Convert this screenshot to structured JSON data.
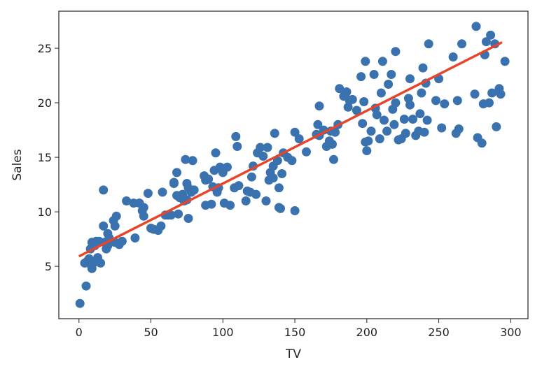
{
  "chart_data": {
    "type": "scatter",
    "xlabel": "TV",
    "ylabel": "Sales",
    "xlim": [
      -14,
      312
    ],
    "ylim": [
      0.2,
      28.4
    ],
    "xticks": [
      0,
      50,
      100,
      150,
      200,
      250,
      300
    ],
    "yticks": [
      5,
      10,
      15,
      20,
      25
    ],
    "grid": false,
    "colors": {
      "points": "#3a72b0",
      "fit_line": "#e8442a",
      "axis": "#222222"
    },
    "series": [
      {
        "type": "scatter",
        "points": [
          [
            0.7,
            1.6
          ],
          [
            5,
            3.2
          ],
          [
            4,
            5.3
          ],
          [
            6,
            5.5
          ],
          [
            7,
            5.7
          ],
          [
            8,
            5.2
          ],
          [
            9,
            4.8
          ],
          [
            10,
            5.3
          ],
          [
            8,
            6.6
          ],
          [
            11,
            6.9
          ],
          [
            9,
            7.2
          ],
          [
            12,
            7.3
          ],
          [
            14,
            7.3
          ],
          [
            13,
            5.8
          ],
          [
            15,
            5.3
          ],
          [
            17,
            12.0
          ],
          [
            17,
            8.7
          ],
          [
            18,
            7.2
          ],
          [
            19,
            6.6
          ],
          [
            20,
            6.9
          ],
          [
            20,
            8.0
          ],
          [
            21,
            7.6
          ],
          [
            24,
            9.2
          ],
          [
            25,
            8.7
          ],
          [
            26,
            9.6
          ],
          [
            25,
            7.2
          ],
          [
            28,
            7.0
          ],
          [
            30,
            7.3
          ],
          [
            33,
            11.0
          ],
          [
            38,
            10.8
          ],
          [
            39,
            7.6
          ],
          [
            42,
            10.8
          ],
          [
            44,
            10.1
          ],
          [
            45,
            9.6
          ],
          [
            45,
            10.4
          ],
          [
            48,
            11.7
          ],
          [
            50,
            8.5
          ],
          [
            52,
            8.4
          ],
          [
            55,
            8.3
          ],
          [
            57,
            8.7
          ],
          [
            58,
            11.8
          ],
          [
            60,
            9.7
          ],
          [
            62,
            9.7
          ],
          [
            64,
            9.7
          ],
          [
            66,
            12.6
          ],
          [
            66,
            12.7
          ],
          [
            68,
            11.5
          ],
          [
            68,
            13.6
          ],
          [
            69,
            9.8
          ],
          [
            70,
            11.3
          ],
          [
            72,
            11.6
          ],
          [
            73,
            11.0
          ],
          [
            74,
            14.8
          ],
          [
            75,
            12.6
          ],
          [
            75,
            11.1
          ],
          [
            76,
            12.2
          ],
          [
            76,
            9.4
          ],
          [
            78,
            11.8
          ],
          [
            79,
            14.7
          ],
          [
            80,
            12.0
          ],
          [
            87,
            13.3
          ],
          [
            88,
            10.6
          ],
          [
            88,
            12.9
          ],
          [
            90,
            13.0
          ],
          [
            92,
            10.7
          ],
          [
            93,
            12.3
          ],
          [
            94,
            13.8
          ],
          [
            95,
            15.4
          ],
          [
            96,
            11.8
          ],
          [
            97,
            12.2
          ],
          [
            98,
            14.1
          ],
          [
            100,
            13.6
          ],
          [
            101,
            10.8
          ],
          [
            103,
            14.1
          ],
          [
            105,
            10.6
          ],
          [
            108,
            12.2
          ],
          [
            109,
            16.9
          ],
          [
            110,
            16.0
          ],
          [
            111,
            12.4
          ],
          [
            116,
            11.0
          ],
          [
            117,
            11.9
          ],
          [
            119,
            11.8
          ],
          [
            120,
            13.2
          ],
          [
            121,
            14.2
          ],
          [
            123,
            11.6
          ],
          [
            124,
            15.4
          ],
          [
            126,
            15.9
          ],
          [
            128,
            15.1
          ],
          [
            130,
            11.0
          ],
          [
            131,
            15.9
          ],
          [
            132,
            12.9
          ],
          [
            133,
            13.6
          ],
          [
            135,
            13.1
          ],
          [
            135,
            14.2
          ],
          [
            136,
            17.2
          ],
          [
            138,
            14.7
          ],
          [
            139,
            12.2
          ],
          [
            139,
            10.4
          ],
          [
            140,
            10.3
          ],
          [
            141,
            13.5
          ],
          [
            142,
            15.4
          ],
          [
            145,
            15.0
          ],
          [
            148,
            14.7
          ],
          [
            150,
            10.1
          ],
          [
            150,
            17.3
          ],
          [
            153,
            16.7
          ],
          [
            158,
            15.5
          ],
          [
            165,
            17.1
          ],
          [
            166,
            18.0
          ],
          [
            167,
            19.7
          ],
          [
            167,
            17.0
          ],
          [
            170,
            17.5
          ],
          [
            172,
            16.0
          ],
          [
            174,
            16.5
          ],
          [
            175,
            17.4
          ],
          [
            176,
            16.2
          ],
          [
            177,
            14.8
          ],
          [
            178,
            17.3
          ],
          [
            180,
            18.0
          ],
          [
            181,
            21.3
          ],
          [
            184,
            20.6
          ],
          [
            185,
            20.7
          ],
          [
            186,
            21.0
          ],
          [
            187,
            19.6
          ],
          [
            188,
            20.2
          ],
          [
            190,
            20.3
          ],
          [
            193,
            19.3
          ],
          [
            196,
            22.4
          ],
          [
            197,
            18.1
          ],
          [
            198,
            20.1
          ],
          [
            199,
            23.8
          ],
          [
            199,
            16.4
          ],
          [
            200,
            15.6
          ],
          [
            201,
            16.5
          ],
          [
            203,
            17.4
          ],
          [
            205,
            22.6
          ],
          [
            206,
            19.5
          ],
          [
            207,
            18.9
          ],
          [
            209,
            16.7
          ],
          [
            210,
            20.9
          ],
          [
            211,
            23.8
          ],
          [
            212,
            18.4
          ],
          [
            214,
            17.4
          ],
          [
            215,
            21.7
          ],
          [
            217,
            22.6
          ],
          [
            218,
            19.4
          ],
          [
            219,
            18.0
          ],
          [
            220,
            24.7
          ],
          [
            220,
            20.0
          ],
          [
            222,
            16.6
          ],
          [
            224,
            16.7
          ],
          [
            226,
            18.5
          ],
          [
            227,
            17.2
          ],
          [
            229,
            20.4
          ],
          [
            230,
            22.2
          ],
          [
            230,
            19.8
          ],
          [
            232,
            18.5
          ],
          [
            234,
            17.0
          ],
          [
            236,
            17.4
          ],
          [
            237,
            19.0
          ],
          [
            238,
            20.9
          ],
          [
            239,
            23.2
          ],
          [
            240,
            17.3
          ],
          [
            241,
            21.8
          ],
          [
            242,
            18.4
          ],
          [
            243,
            25.4
          ],
          [
            248,
            20.2
          ],
          [
            250,
            22.2
          ],
          [
            252,
            17.7
          ],
          [
            254,
            19.9
          ],
          [
            260,
            24.2
          ],
          [
            262,
            17.2
          ],
          [
            263,
            20.2
          ],
          [
            264,
            17.6
          ],
          [
            266,
            25.4
          ],
          [
            275,
            20.8
          ],
          [
            276,
            27.0
          ],
          [
            277,
            16.8
          ],
          [
            280,
            16.3
          ],
          [
            281,
            19.9
          ],
          [
            282,
            24.4
          ],
          [
            283,
            25.6
          ],
          [
            285,
            20.0
          ],
          [
            286,
            26.2
          ],
          [
            287,
            20.9
          ],
          [
            289,
            25.4
          ],
          [
            290,
            17.8
          ],
          [
            292,
            21.3
          ],
          [
            293,
            20.8
          ],
          [
            296,
            23.8
          ]
        ]
      },
      {
        "type": "line",
        "points": [
          [
            0,
            5.92
          ],
          [
            294,
            25.55
          ]
        ]
      }
    ]
  }
}
